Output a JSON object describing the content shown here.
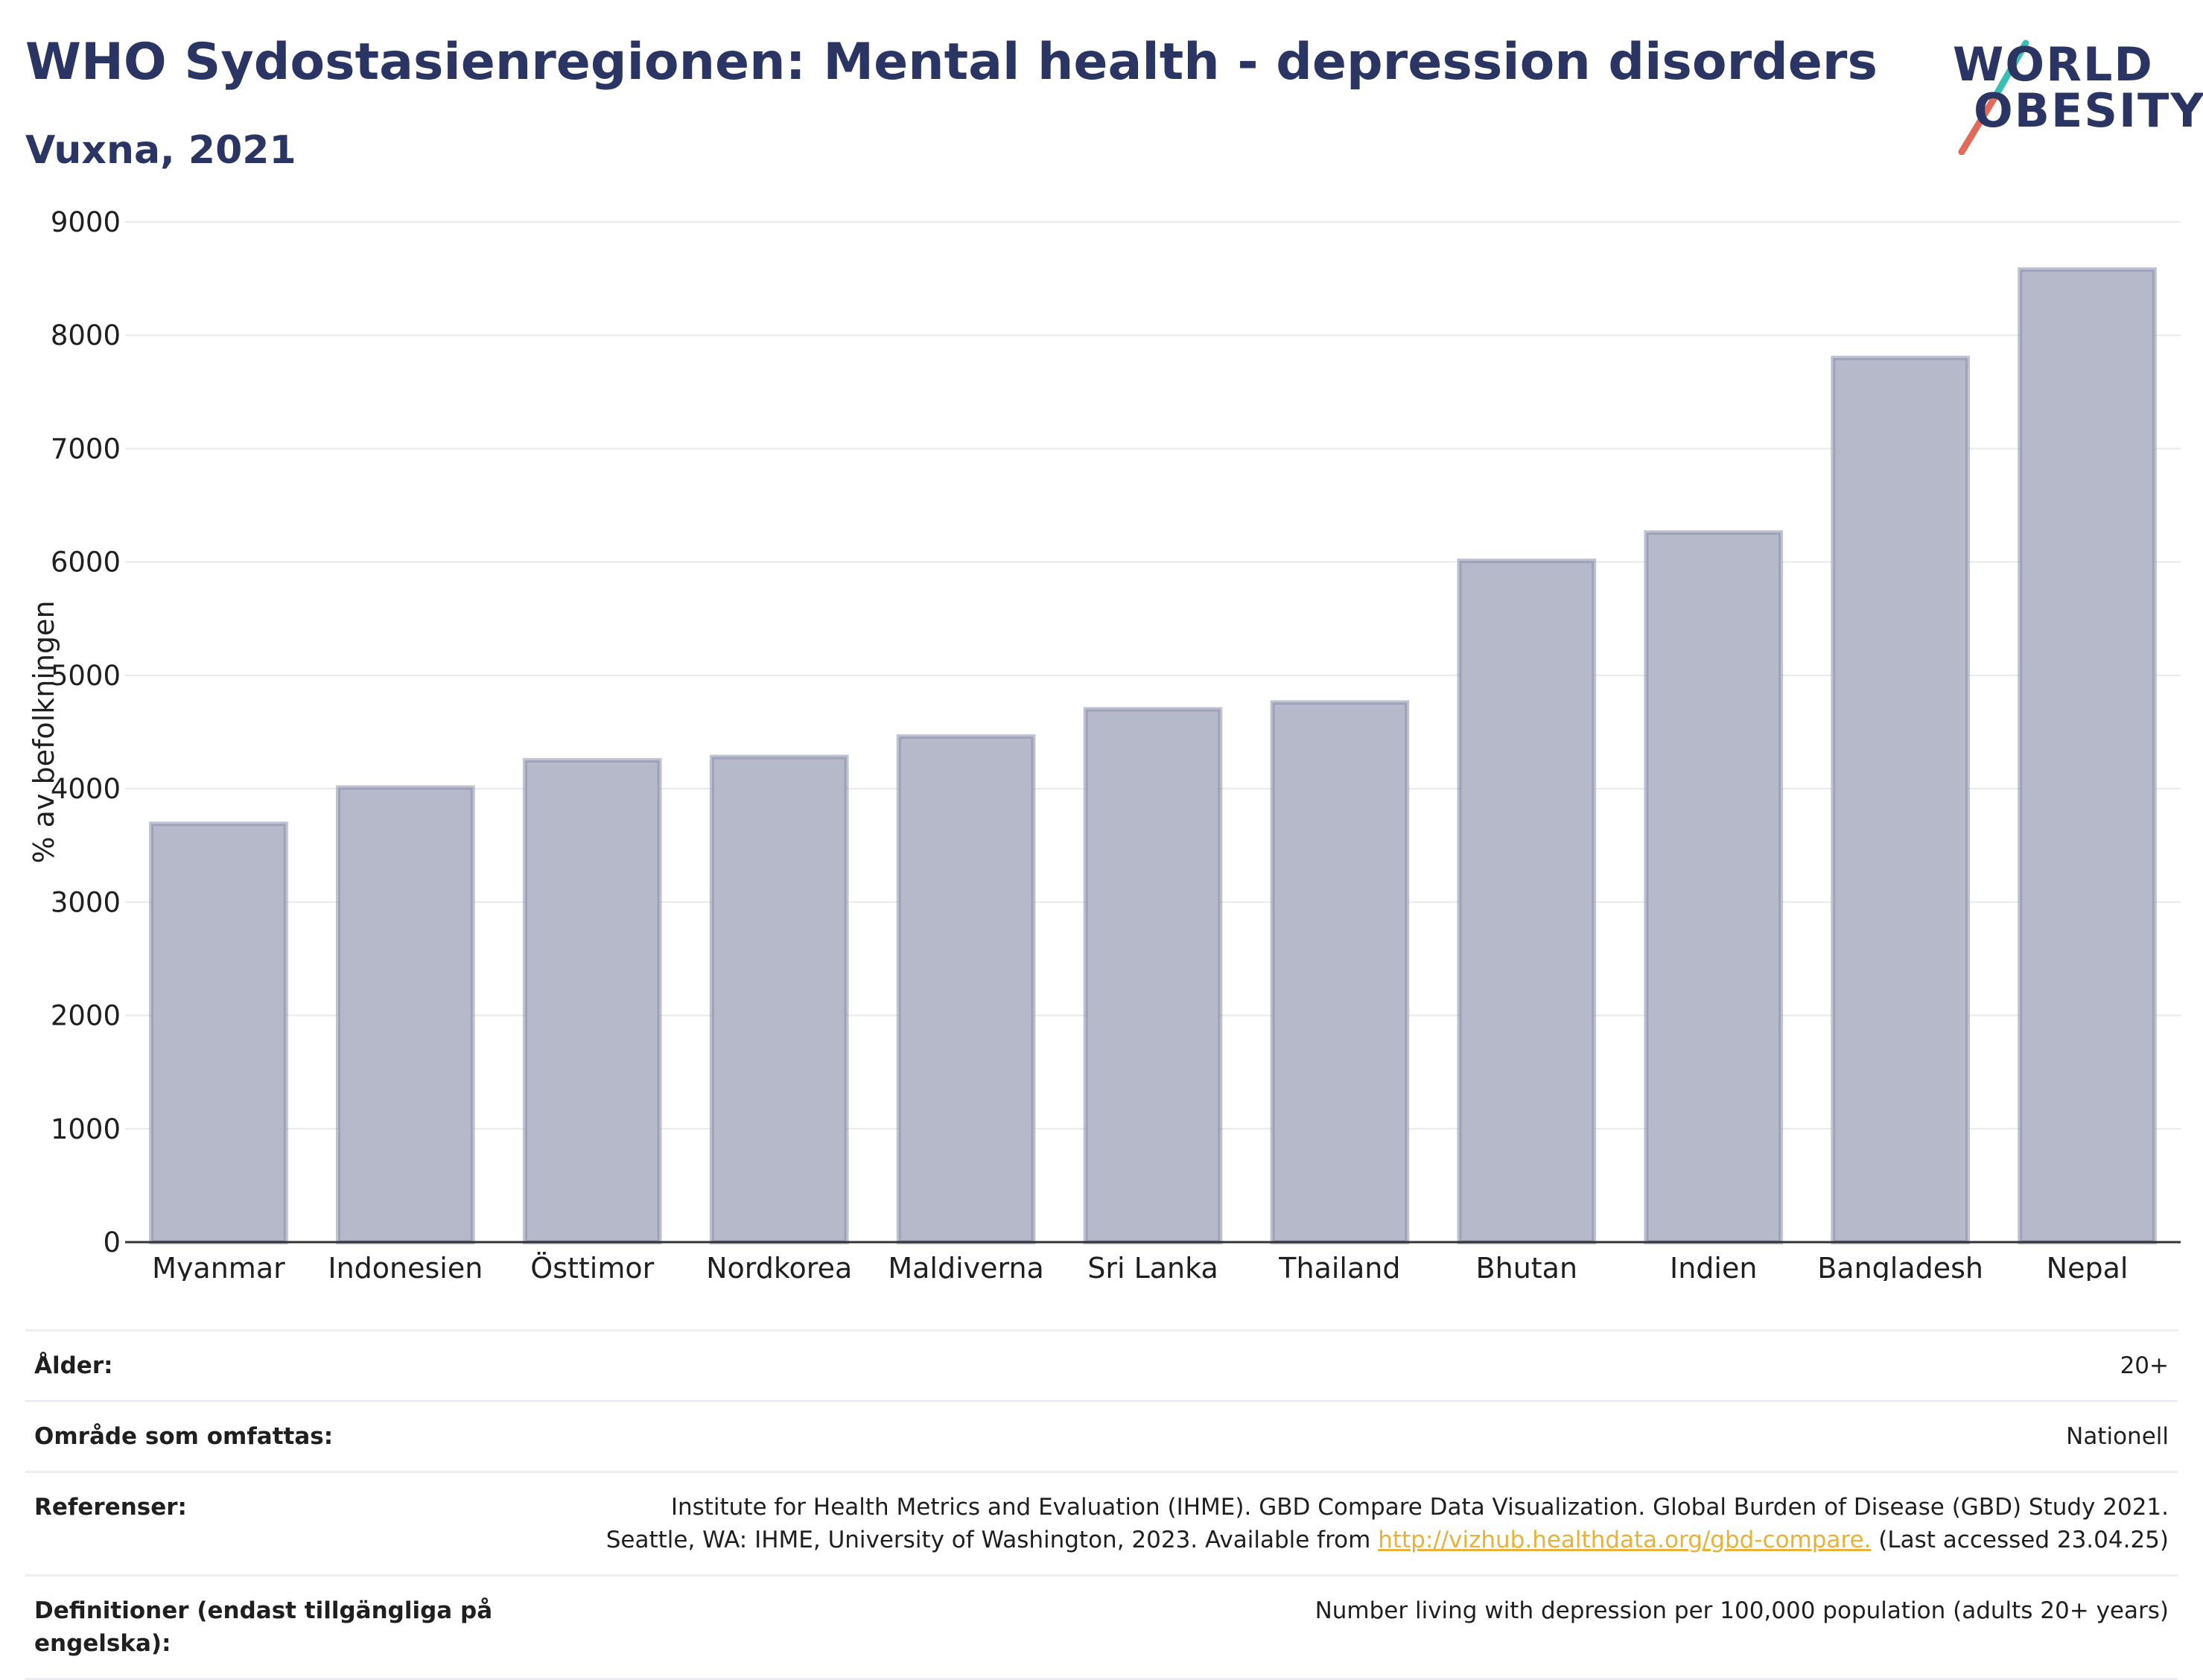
{
  "title": "WHO Sydostasienregionen: Mental health - depression disorders",
  "subtitle": "Vuxna, 2021",
  "logo": {
    "line1": "WORLD",
    "line2": "OBESITY",
    "colors": [
      "#2a3563",
      "#e26a5a",
      "#3bbfb5"
    ]
  },
  "chart_data": {
    "type": "bar",
    "categories": [
      "Myanmar",
      "Indonesien",
      "Östtimor",
      "Nordkorea",
      "Maldiverna",
      "Sri Lanka",
      "Thailand",
      "Bhutan",
      "Indien",
      "Bangladesh",
      "Nepal"
    ],
    "values": [
      3690,
      4010,
      4250,
      4280,
      4460,
      4700,
      4760,
      6010,
      6260,
      7800,
      8580
    ],
    "ylabel": "% av befolkningen",
    "ylim": [
      0,
      9000
    ],
    "yticks": [
      "0",
      "1000",
      "2000",
      "3000",
      "4000",
      "5000",
      "6000",
      "7000",
      "8000",
      "9000"
    ],
    "grid": true,
    "bar_fill": "#b5b9c9",
    "bar_stroke": "#8b91ac"
  },
  "meta": {
    "age_label": "Ålder:",
    "age_value": "20+",
    "area_label": "Område som omfattas:",
    "area_value": "Nationell",
    "refs_label": "Referenser:",
    "refs_line1": "Institute for Health Metrics and Evaluation (IHME). GBD Compare Data Visualization. Global Burden of Disease (GBD) Study 2021.",
    "refs_line2_pre": "Seattle, WA: IHME, University of Washington, 2023. Available from ",
    "refs_link": "http://vizhub.healthdata.org/gbd-compare.",
    "refs_line2_post": " (Last accessed 23.04.25)",
    "defs_label": "Definitioner (endast tillgängliga på engelska):",
    "defs_value": "Number living with depression per 100,000 population (adults 20+ years)"
  }
}
